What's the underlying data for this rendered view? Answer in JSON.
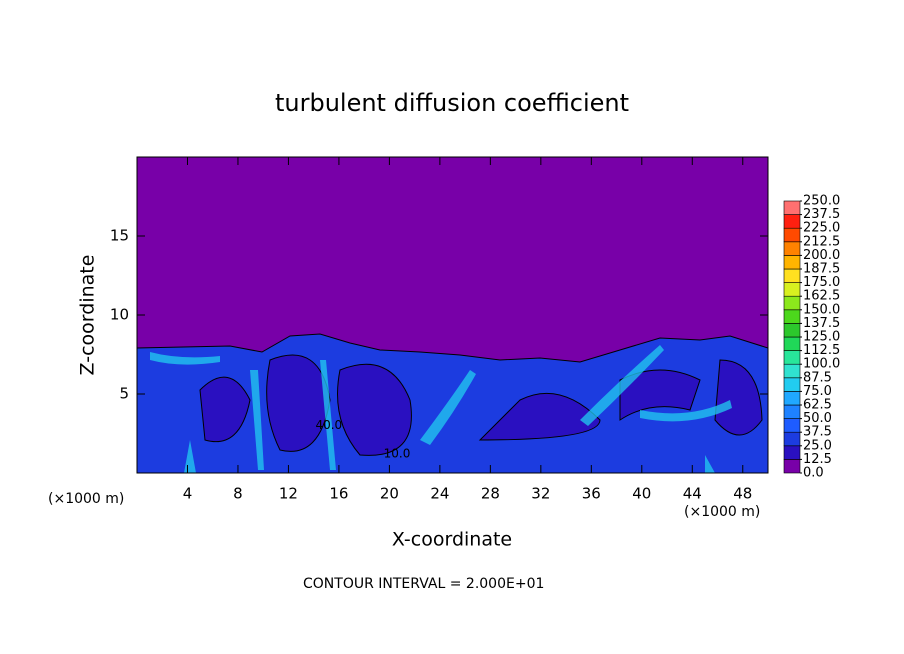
{
  "chart_data": {
    "type": "contour",
    "title": "turbulent diffusion coefficient",
    "xlabel": "X-coordinate",
    "ylabel": "Z-coordinate",
    "x_unit_left": "(×1000 m)",
    "x_unit_right": "(×1000 m)",
    "footnote": "CONTOUR INTERVAL = 2.000E+01",
    "xlim": [
      0,
      50
    ],
    "xticks": [
      4,
      8,
      12,
      16,
      20,
      24,
      28,
      32,
      36,
      40,
      44,
      48
    ],
    "ylim": [
      0,
      20
    ],
    "yticks": [
      5,
      10,
      15
    ],
    "annotations": [
      {
        "text": "40.0",
        "x": 15.2,
        "y": 3
      },
      {
        "text": "10.0",
        "x": 20.6,
        "y": 1.2
      }
    ],
    "colorbar": {
      "levels": [
        {
          "value": 0,
          "label": "0.0"
        },
        {
          "value": 12.5,
          "label": "12.5"
        },
        {
          "value": 25,
          "label": "25.0"
        },
        {
          "value": 37.5,
          "label": "37.5"
        },
        {
          "value": 50,
          "label": "50.0"
        },
        {
          "value": 62.5,
          "label": "62.5"
        },
        {
          "value": 75,
          "label": "75.0"
        },
        {
          "value": 87.5,
          "label": "87.5"
        },
        {
          "value": 100,
          "label": "100.0"
        },
        {
          "value": 112.5,
          "label": "112.5"
        },
        {
          "value": 125,
          "label": "125.0"
        },
        {
          "value": 137.5,
          "label": "137.5"
        },
        {
          "value": 150,
          "label": "150.0"
        },
        {
          "value": 162.5,
          "label": "162.5"
        },
        {
          "value": 175,
          "label": "175.0"
        },
        {
          "value": 187.5,
          "label": "187.5"
        },
        {
          "value": 200,
          "label": "200.0"
        },
        {
          "value": 212.5,
          "label": "212.5"
        },
        {
          "value": 225,
          "label": "225.0"
        },
        {
          "value": 237.5,
          "label": "237.5"
        },
        {
          "value": 250,
          "label": "250.0"
        }
      ],
      "colors": [
        "#7800a8",
        "#2a10c0",
        "#1c3ce0",
        "#1e5cff",
        "#1e82ff",
        "#20a8ff",
        "#22ccf0",
        "#30e2d0",
        "#28e69a",
        "#20d858",
        "#2cc82c",
        "#4cd81c",
        "#8ce81c",
        "#d8f020",
        "#ffe020",
        "#ffb400",
        "#ff8200",
        "#ff4a00",
        "#ff2010",
        "#ff7070"
      ]
    }
  }
}
